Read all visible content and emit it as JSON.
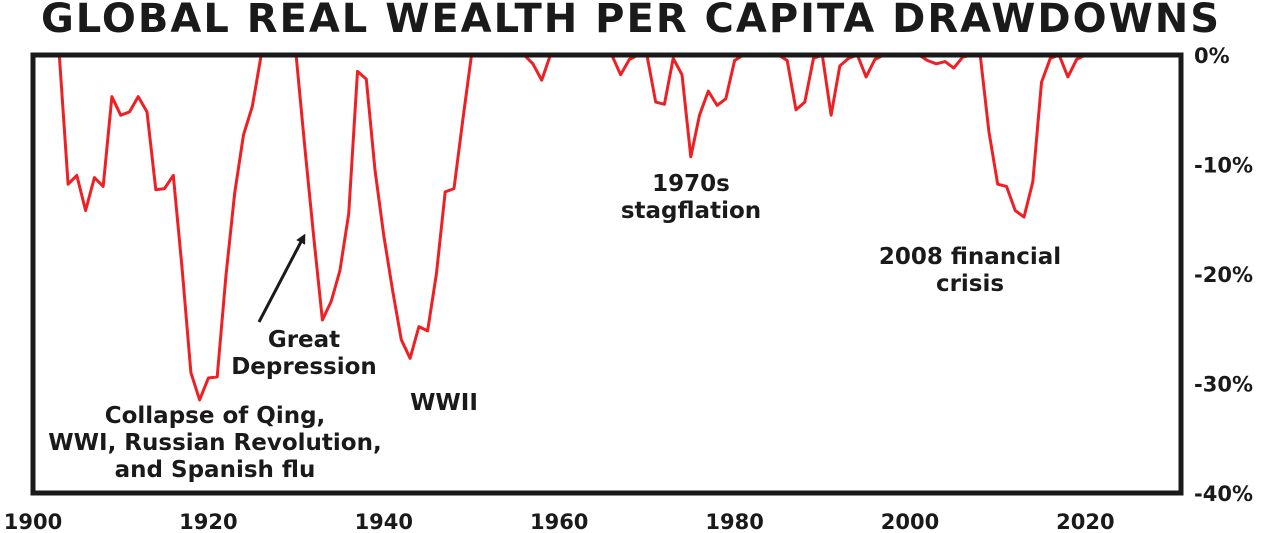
{
  "chart_data": {
    "type": "line",
    "title": "GLOBAL REAL WEALTH PER CAPITA DRAWDOWNS",
    "xlabel": "",
    "ylabel": "",
    "xlim": [
      1900,
      2032
    ],
    "ylim": [
      -40,
      0
    ],
    "x_ticks": [
      1900,
      1920,
      1940,
      1960,
      1980,
      2000,
      2020
    ],
    "y_ticks": [
      0,
      -10,
      -20,
      -30,
      -40
    ],
    "y_tick_labels": [
      "0%",
      "-10%",
      "-20%",
      "-30%",
      "-40%"
    ],
    "grid": false,
    "legend": "none",
    "series": [
      {
        "color": "#ee2024",
        "x": [
          1903,
          1904,
          1905,
          1906,
          1907,
          1908,
          1909,
          1910,
          1911,
          1912,
          1913,
          1914,
          1915,
          1916,
          1917,
          1918,
          1919,
          1920,
          1921,
          1922,
          1923,
          1924,
          1925,
          1926,
          1927,
          1928,
          1929,
          1930,
          1931,
          1932,
          1933,
          1934,
          1935,
          1936,
          1937,
          1938,
          1939,
          1940,
          1941,
          1942,
          1943,
          1944,
          1945,
          1946,
          1947,
          1948,
          1949,
          1950,
          1951,
          1952,
          1953,
          1954,
          1955,
          1956,
          1957,
          1958,
          1959,
          1960,
          1961,
          1962,
          1963,
          1964,
          1965,
          1966,
          1967,
          1968,
          1969,
          1970,
          1971,
          1972,
          1973,
          1974,
          1975,
          1976,
          1977,
          1978,
          1979,
          1980,
          1981,
          1982,
          1983,
          1984,
          1985,
          1986,
          1987,
          1988,
          1989,
          1990,
          1991,
          1992,
          1993,
          1994,
          1995,
          1996,
          1997,
          1998,
          1999,
          2000,
          2001,
          2002,
          2003,
          2004,
          2005,
          2006,
          2007,
          2008,
          2009,
          2010,
          2011,
          2012,
          2013,
          2014,
          2015,
          2016,
          2017,
          2018,
          2019,
          2020,
          2021
        ],
        "values": [
          0,
          -11.8,
          -11.0,
          -14.2,
          -11.2,
          -12.0,
          -3.8,
          -5.5,
          -5.2,
          -3.8,
          -5.2,
          -12.3,
          -12.2,
          -11.0,
          -19.5,
          -29.0,
          -31.5,
          -29.5,
          -29.4,
          -20.2,
          -12.6,
          -7.3,
          -4.7,
          -0.1,
          0,
          0,
          0,
          0,
          -8.5,
          -16.5,
          -24.2,
          -22.5,
          -19.7,
          -14.5,
          -1.5,
          -2.2,
          -10.5,
          -16.5,
          -21.5,
          -26.0,
          -27.7,
          -24.8,
          -25.2,
          -20.0,
          -12.5,
          -12.2,
          -6.0,
          0,
          0,
          0,
          0,
          0,
          0,
          0,
          -0.8,
          -2.3,
          0,
          0,
          0,
          0,
          0,
          0,
          0,
          0,
          -1.8,
          -0.4,
          0,
          0,
          -4.3,
          -4.5,
          -0.3,
          -1.8,
          -9.3,
          -5.5,
          -3.3,
          -4.6,
          -4.0,
          -0.5,
          0,
          0,
          0,
          0,
          0,
          -0.5,
          -5.0,
          -4.3,
          -0.3,
          0,
          -5.5,
          -1.0,
          -0.3,
          0,
          -2.0,
          -0.4,
          0,
          0,
          0,
          0,
          0,
          -0.5,
          -0.8,
          -0.6,
          -1.2,
          -0.2,
          0,
          0,
          -7.0,
          -11.8,
          -12.0,
          -14.2,
          -14.8,
          -11.6,
          -2.5,
          -0.3,
          0,
          -2.0,
          -0.4,
          0,
          0
        ]
      }
    ],
    "annotations": [
      {
        "lines": [
          "Collapse of Qing,",
          "WWI, Russian Revolution,",
          "and Spanish flu"
        ]
      },
      {
        "lines": [
          "Great",
          "Depression"
        ]
      },
      {
        "lines": [
          "WWII"
        ]
      },
      {
        "lines": [
          "1970s",
          "stagflation"
        ]
      },
      {
        "lines": [
          "2008 financial",
          "crisis"
        ]
      }
    ]
  }
}
